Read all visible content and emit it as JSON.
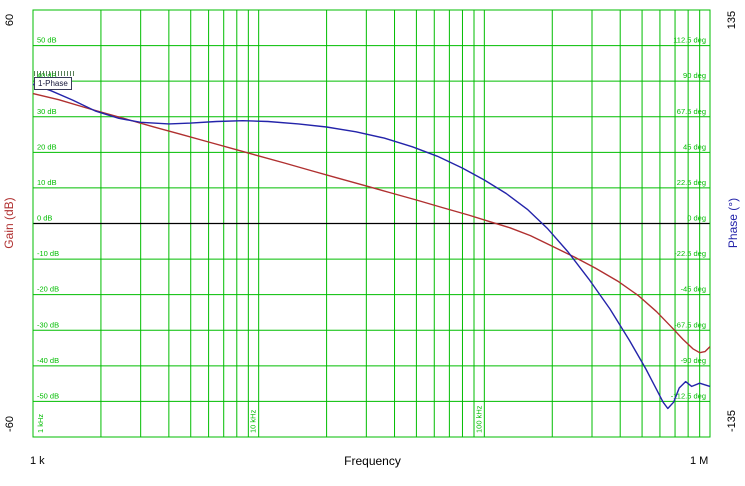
{
  "chart_data": {
    "type": "line",
    "title": "",
    "grid_color": "#00bd00",
    "zero_line_color": "#000000",
    "legend_box": {
      "label": "1-Phase"
    },
    "x_axis": {
      "label": "Frequency",
      "scale": "log",
      "range_hz": [
        1000,
        1000000
      ],
      "corner_labels": [
        "1 k",
        "1 M"
      ],
      "decade_labels": [
        {
          "freq": 1000,
          "label": "1 kHz"
        },
        {
          "freq": 10000,
          "label": "10 kHz"
        },
        {
          "freq": 100000,
          "label": "100 kHz"
        }
      ]
    },
    "left_axis": {
      "title": "Gain (dB)",
      "range_db": [
        -60,
        60
      ],
      "end_labels": [
        "60",
        "-60"
      ],
      "ticks": [
        {
          "value": 50,
          "label": "50 dB"
        },
        {
          "value": 40,
          "label": "40 dB"
        },
        {
          "value": 30,
          "label": "30 dB"
        },
        {
          "value": 20,
          "label": "20 dB"
        },
        {
          "value": 10,
          "label": "10 dB"
        },
        {
          "value": 0,
          "label": "0 dB"
        },
        {
          "value": -10,
          "label": "-10 dB"
        },
        {
          "value": -20,
          "label": "-20 dB"
        },
        {
          "value": -30,
          "label": "-30 dB"
        },
        {
          "value": -40,
          "label": "-40 dB"
        },
        {
          "value": -50,
          "label": "-50 dB"
        }
      ]
    },
    "right_axis": {
      "title": "Phase (°)",
      "range_deg": [
        -135,
        135
      ],
      "end_labels": [
        "135",
        "-135"
      ],
      "ticks": [
        {
          "value": 112.5,
          "label": "112.5 deg"
        },
        {
          "value": 90,
          "label": "90 deg"
        },
        {
          "value": 67.5,
          "label": "67.5 deg"
        },
        {
          "value": 45,
          "label": "45 deg"
        },
        {
          "value": 22.5,
          "label": "22.5 deg"
        },
        {
          "value": 0,
          "label": "0 deg"
        },
        {
          "value": -22.5,
          "label": "-22.5 deg"
        },
        {
          "value": -45,
          "label": "-45 deg"
        },
        {
          "value": -67.5,
          "label": "-67.5 deg"
        },
        {
          "value": -90,
          "label": "-90 deg"
        },
        {
          "value": -112.5,
          "label": "-112.5 deg"
        }
      ]
    },
    "series": [
      {
        "name": "Gain",
        "axis": "left",
        "color": "#b03030",
        "points": [
          [
            1000,
            36.5
          ],
          [
            1300,
            34.8
          ],
          [
            1700,
            32.6
          ],
          [
            2000,
            31.3
          ],
          [
            2600,
            29.3
          ],
          [
            3400,
            27.2
          ],
          [
            4500,
            25.1
          ],
          [
            6000,
            22.9
          ],
          [
            8000,
            20.7
          ],
          [
            10000,
            19.0
          ],
          [
            13000,
            17.0
          ],
          [
            17000,
            14.9
          ],
          [
            22000,
            12.9
          ],
          [
            29000,
            10.8
          ],
          [
            38000,
            8.7
          ],
          [
            50000,
            6.6
          ],
          [
            65000,
            4.5
          ],
          [
            85000,
            2.4
          ],
          [
            105000,
            0.6
          ],
          [
            130000,
            -1.2
          ],
          [
            160000,
            -3.4
          ],
          [
            200000,
            -6.4
          ],
          [
            250000,
            -9.4
          ],
          [
            310000,
            -12.5
          ],
          [
            390000,
            -16.2
          ],
          [
            480000,
            -20.2
          ],
          [
            580000,
            -24.8
          ],
          [
            680000,
            -29.3
          ],
          [
            760000,
            -32.6
          ],
          [
            840000,
            -35.2
          ],
          [
            900000,
            -36.3
          ],
          [
            950000,
            -36.0
          ],
          [
            1000000,
            -34.6
          ]
        ]
      },
      {
        "name": "Phase",
        "axis": "right",
        "color": "#2424aa",
        "points": [
          [
            1000,
            88
          ],
          [
            1200,
            84
          ],
          [
            1500,
            78
          ],
          [
            1900,
            71
          ],
          [
            2400,
            66.5
          ],
          [
            3000,
            64
          ],
          [
            4000,
            63
          ],
          [
            5000,
            63.5
          ],
          [
            6500,
            64.5
          ],
          [
            8500,
            65
          ],
          [
            11000,
            64.5
          ],
          [
            15000,
            63
          ],
          [
            20000,
            61
          ],
          [
            27000,
            58
          ],
          [
            36000,
            54
          ],
          [
            48000,
            48.5
          ],
          [
            62000,
            42.5
          ],
          [
            80000,
            35
          ],
          [
            100000,
            27.5
          ],
          [
            125000,
            19
          ],
          [
            155000,
            9
          ],
          [
            190000,
            -3
          ],
          [
            235000,
            -18
          ],
          [
            290000,
            -35
          ],
          [
            360000,
            -54
          ],
          [
            440000,
            -74
          ],
          [
            520000,
            -92
          ],
          [
            580000,
            -105
          ],
          [
            620000,
            -113
          ],
          [
            650000,
            -117
          ],
          [
            690000,
            -113
          ],
          [
            730000,
            -104
          ],
          [
            780000,
            -100
          ],
          [
            830000,
            -103
          ],
          [
            900000,
            -101
          ],
          [
            1000000,
            -103
          ]
        ]
      }
    ]
  }
}
